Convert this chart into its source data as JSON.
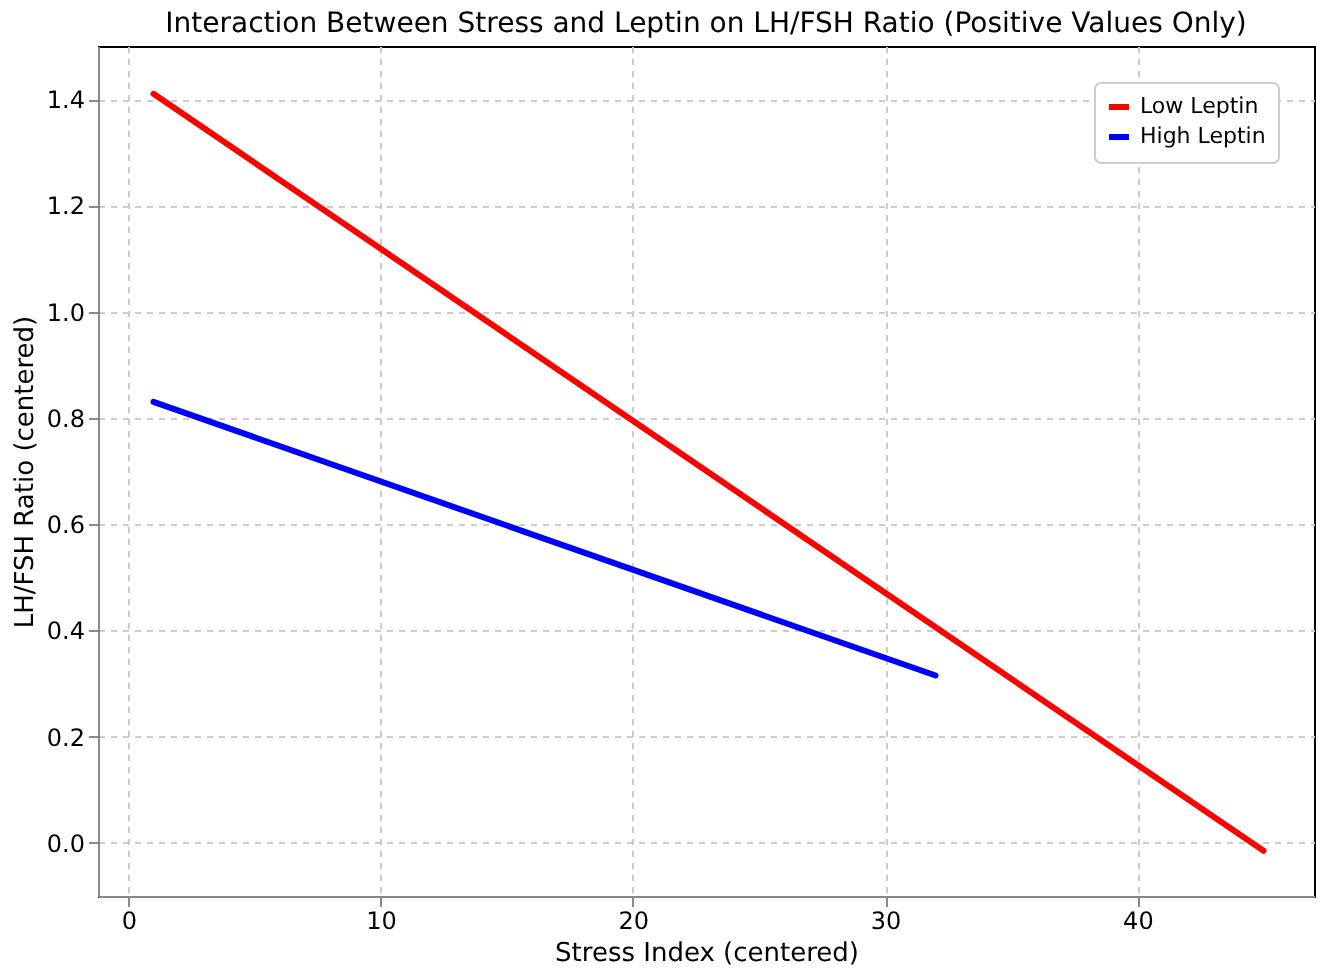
{
  "chart_data": {
    "type": "line",
    "title": "Interaction Between Stress and Leptin on LH/FSH Ratio (Positive Values Only)",
    "xlabel": "Stress Index (centered)",
    "ylabel": "LH/FSH Ratio (centered)",
    "series": [
      {
        "name": "Low Leptin",
        "color": "#ff0000",
        "x": [
          1,
          45
        ],
        "values": [
          1.41,
          -0.015
        ]
      },
      {
        "name": "High Leptin",
        "color": "#0000ff",
        "x": [
          1,
          32
        ],
        "values": [
          0.83,
          0.315
        ]
      }
    ],
    "xlim": [
      -1.2,
      47
    ],
    "xticks": [
      0,
      10,
      20,
      30,
      40
    ],
    "ylim": [
      -0.1,
      1.5
    ],
    "yticks": [
      {
        "value": 0,
        "label": "0.0"
      },
      0.2,
      0.4,
      0.6,
      0.8,
      {
        "value": 1,
        "label": "1.0"
      },
      1.2,
      1.4
    ],
    "grid": true,
    "legend": "top right",
    "line_style": "solid",
    "marker": "none"
  }
}
